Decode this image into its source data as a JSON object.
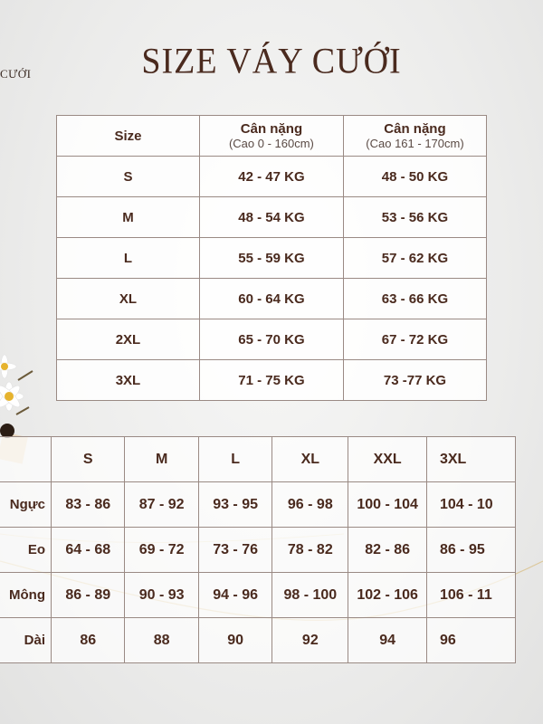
{
  "brand_fragment": "CƯỚI",
  "title": "SIZE VÁY CƯỚI",
  "weight_table": {
    "headers": [
      {
        "label": "Size",
        "sub": ""
      },
      {
        "label": "Cân nặng",
        "sub": "(Cao 0 - 160cm)"
      },
      {
        "label": "Cân nặng",
        "sub": "(Cao 161 - 170cm)"
      }
    ],
    "rows": [
      [
        "S",
        "42 - 47 KG",
        "48 - 50 KG"
      ],
      [
        "M",
        "48 - 54 KG",
        "53 - 56 KG"
      ],
      [
        "L",
        "55 - 59 KG",
        "57 - 62 KG"
      ],
      [
        "XL",
        "60 - 64 KG",
        "63 - 66 KG"
      ],
      [
        "2XL",
        "65 - 70 KG",
        "67 - 72 KG"
      ],
      [
        "3XL",
        "71 - 75 KG",
        "73 -77 KG"
      ]
    ]
  },
  "measure_table": {
    "sizes": [
      "S",
      "M",
      "L",
      "XL",
      "XXL",
      "3XL"
    ],
    "rows": [
      {
        "label": "Ngực",
        "values": [
          "83 - 86",
          "87 - 92",
          "93 - 95",
          "96 - 98",
          "100 - 104",
          "104 - 10"
        ]
      },
      {
        "label": "Eo",
        "values": [
          "64 - 68",
          "69 - 72",
          "73 - 76",
          "78 - 82",
          "82 - 86",
          "86 - 95"
        ]
      },
      {
        "label": "Mông",
        "values": [
          "86 - 89",
          "90 - 93",
          "94 - 96",
          "98 - 100",
          "102 - 106",
          "106 - 11"
        ]
      },
      {
        "label": "Dài",
        "values": [
          "86",
          "88",
          "90",
          "92",
          "94",
          "96"
        ]
      }
    ]
  },
  "colors": {
    "text": "#4a2a1e",
    "border": "#9a8a84",
    "accent_line": "#d9c08a"
  }
}
